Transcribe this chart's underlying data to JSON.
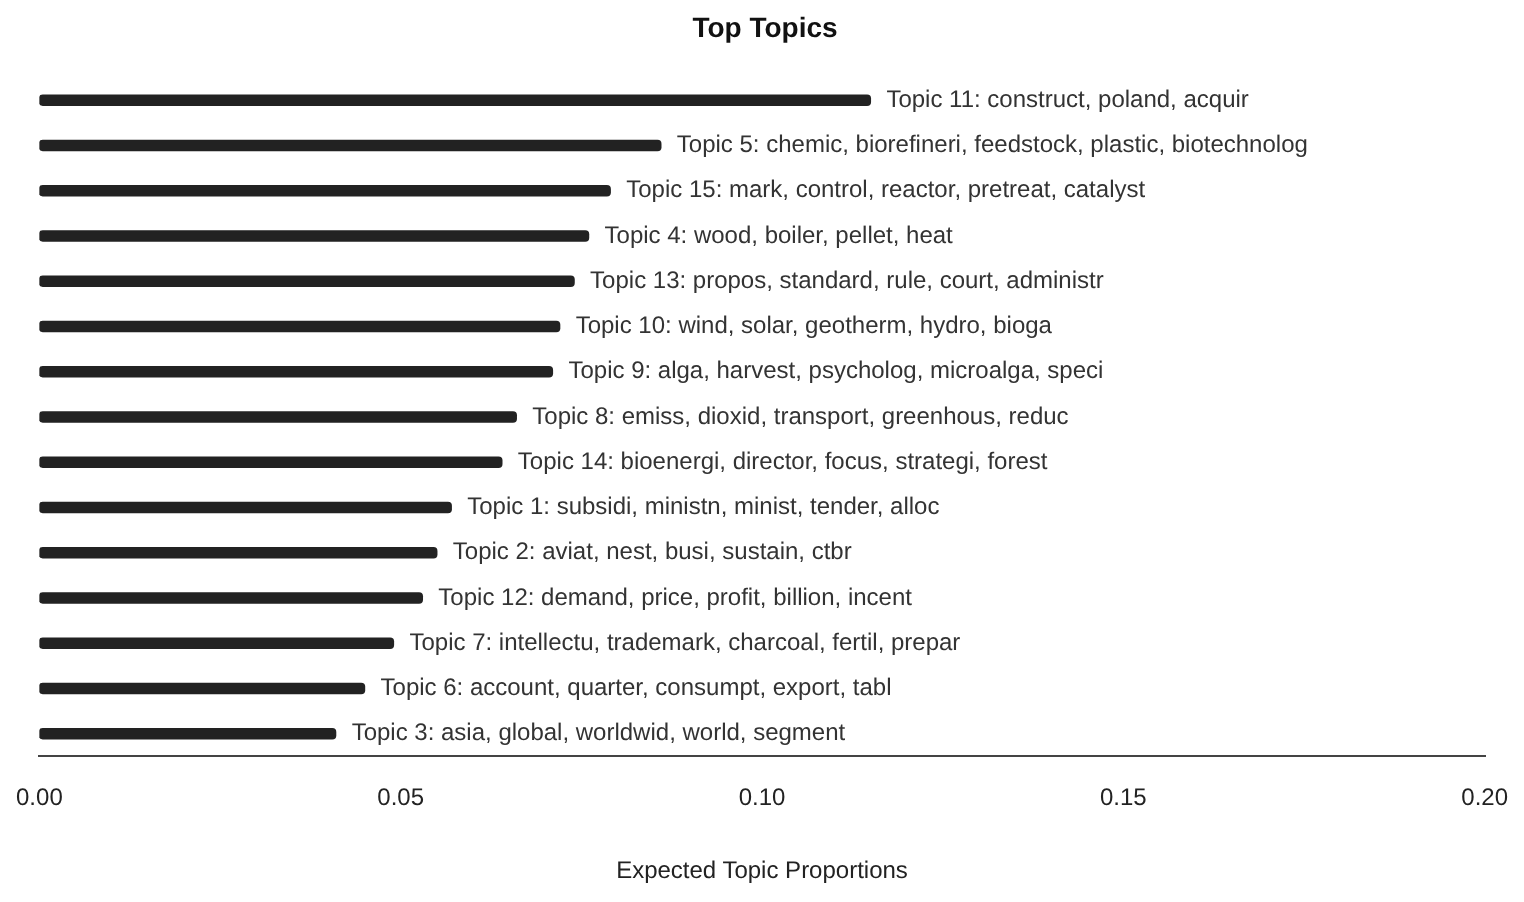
{
  "chart_data": {
    "type": "bar",
    "orientation": "horizontal",
    "title": "Top Topics",
    "xlabel": "Expected Topic Proportions",
    "categories": [
      "Topic 11: construct, poland, acquir",
      "Topic 5: chemic, biorefineri, feedstock, plastic, biotechnolog",
      "Topic 15: mark, control, reactor, pretreat, catalyst",
      "Topic 4: wood, boiler, pellet, heat",
      "Topic 13: propos, standard, rule, court, administr",
      "Topic 10: wind, solar, geotherm, hydro, bioga",
      "Topic 9: alga, harvest, psycholog, microalga, speci",
      "Topic 8: emiss, dioxid, transport, greenhous, reduc",
      "Topic 14: bioenergi, director, focus, strategi, forest",
      "Topic 1: subsidi, ministn, minist, tender, alloc",
      "Topic 2: aviat, nest, busi, sustain, ctbr",
      "Topic 12: demand, price, profit, billion, incent",
      "Topic 7: intellectu, trademark, charcoal, fertil, prepar",
      "Topic 6: account, quarter, consumpt, export, tabl",
      "Topic 3: asia, global, worldwid, world, segment"
    ],
    "values": [
      0.115,
      0.086,
      0.079,
      0.076,
      0.074,
      0.072,
      0.071,
      0.066,
      0.064,
      0.057,
      0.055,
      0.053,
      0.049,
      0.045,
      0.041
    ],
    "color": "#222222",
    "xlim": [
      0,
      0.2
    ],
    "xticks": [
      {
        "value": 0,
        "label": "0.00"
      },
      {
        "value": 0.05,
        "label": "0.05"
      },
      {
        "value": 0.1,
        "label": "0.10"
      },
      {
        "value": 0.15,
        "label": "0.15"
      },
      {
        "value": 0.2,
        "label": "0.20"
      }
    ],
    "grid": false,
    "legend": false
  }
}
